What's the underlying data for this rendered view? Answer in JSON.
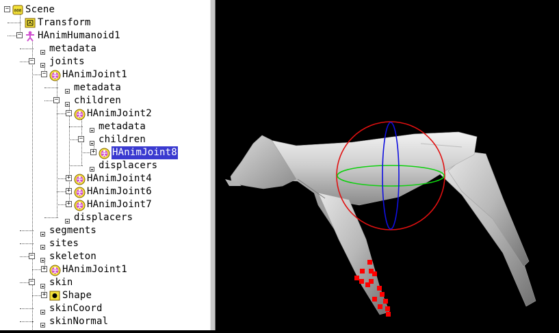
{
  "tree": {
    "nodes": [
      {
        "label": "Scene",
        "depth": 0,
        "toggle": "-",
        "icon": "scene-icon"
      },
      {
        "label": "Transform",
        "depth": 1,
        "toggle": null,
        "icon": "transform-icon"
      },
      {
        "label": "HAnimHumanoid1",
        "depth": 1,
        "toggle": "-",
        "icon": "humanoid-icon"
      },
      {
        "label": "metadata",
        "depth": 2,
        "toggle": null,
        "icon": "field-icon"
      },
      {
        "label": "joints",
        "depth": 2,
        "toggle": "-",
        "icon": "field-icon"
      },
      {
        "label": "HAnimJoint1",
        "depth": 3,
        "toggle": "-",
        "icon": "joint-icon"
      },
      {
        "label": "metadata",
        "depth": 4,
        "toggle": null,
        "icon": "field-icon"
      },
      {
        "label": "children",
        "depth": 4,
        "toggle": "-",
        "icon": "field-icon"
      },
      {
        "label": "HAnimJoint2",
        "depth": 5,
        "toggle": "-",
        "icon": "joint-icon"
      },
      {
        "label": "metadata",
        "depth": 6,
        "toggle": null,
        "icon": "field-icon"
      },
      {
        "label": "children",
        "depth": 6,
        "toggle": "-",
        "icon": "field-icon"
      },
      {
        "label": "HAnimJoint8",
        "depth": 7,
        "toggle": "+",
        "icon": "joint-icon",
        "selected": true
      },
      {
        "label": "displacers",
        "depth": 6,
        "toggle": null,
        "icon": "field-icon"
      },
      {
        "label": "HAnimJoint4",
        "depth": 5,
        "toggle": "+",
        "icon": "joint-icon"
      },
      {
        "label": "HAnimJoint6",
        "depth": 5,
        "toggle": "+",
        "icon": "joint-icon"
      },
      {
        "label": "HAnimJoint7",
        "depth": 5,
        "toggle": "+",
        "icon": "joint-icon"
      },
      {
        "label": "displacers",
        "depth": 4,
        "toggle": null,
        "icon": "field-icon"
      },
      {
        "label": "segments",
        "depth": 2,
        "toggle": null,
        "icon": "field-icon"
      },
      {
        "label": "sites",
        "depth": 2,
        "toggle": null,
        "icon": "field-icon"
      },
      {
        "label": "skeleton",
        "depth": 2,
        "toggle": "-",
        "icon": "field-icon"
      },
      {
        "label": "HAnimJoint1",
        "depth": 3,
        "toggle": "+",
        "icon": "joint-icon"
      },
      {
        "label": "skin",
        "depth": 2,
        "toggle": "-",
        "icon": "field-icon"
      },
      {
        "label": "Shape",
        "depth": 3,
        "toggle": "+",
        "icon": "shape-icon"
      },
      {
        "label": "skinCoord",
        "depth": 2,
        "toggle": null,
        "icon": "field-icon"
      },
      {
        "label": "skinNormal",
        "depth": 2,
        "toggle": null,
        "icon": "field-icon"
      }
    ],
    "scene_icon_text": "000"
  },
  "colors": {
    "selection": "#3a3ad0",
    "sphere_red": "#e01010",
    "sphere_blue": "#1010e0",
    "sphere_green": "#10d010",
    "markers": "#ff0000",
    "joint_icon_fill": "#d050d0",
    "scene_icon_fill": "#f4e23a"
  }
}
